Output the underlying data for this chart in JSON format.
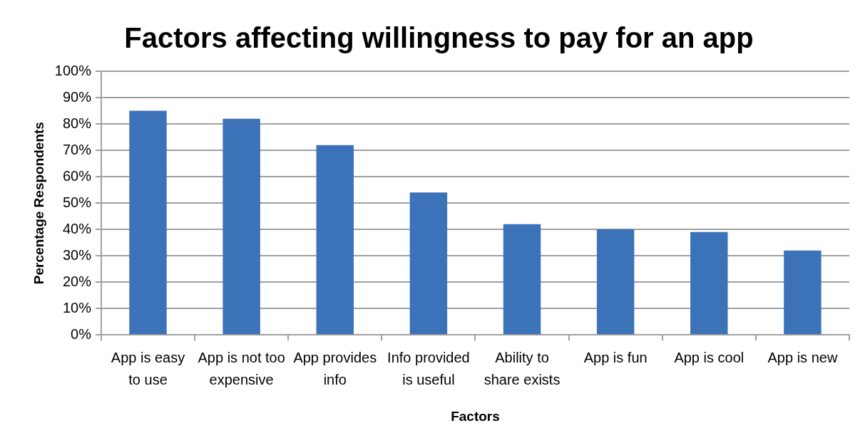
{
  "chart_data": {
    "type": "bar",
    "title": "Factors affecting willingness to pay for an app",
    "xlabel": "Factors",
    "ylabel": "Percentage Respondents",
    "categories": [
      "App is easy to use",
      "App is not too expensive",
      "App provides info",
      "Info provided is useful",
      "Ability to share exists",
      "App is fun",
      "App is cool",
      "App is new"
    ],
    "values": [
      85,
      82,
      72,
      54,
      42,
      40,
      39,
      32
    ],
    "color": "#3c72b8",
    "ylim": [
      0,
      100
    ],
    "yticks": [
      {
        "value": 0,
        "label": "0%"
      },
      {
        "value": 10,
        "label": "10%"
      },
      {
        "value": 20,
        "label": "20%"
      },
      {
        "value": 30,
        "label": "30%"
      },
      {
        "value": 40,
        "label": "40%"
      },
      {
        "value": 50,
        "label": "50%"
      },
      {
        "value": 60,
        "label": "60%"
      },
      {
        "value": 70,
        "label": "70%"
      },
      {
        "value": 80,
        "label": "80%"
      },
      {
        "value": 90,
        "label": "90%"
      },
      {
        "value": 100,
        "label": "100%"
      }
    ],
    "grid": "y",
    "legend": false
  }
}
